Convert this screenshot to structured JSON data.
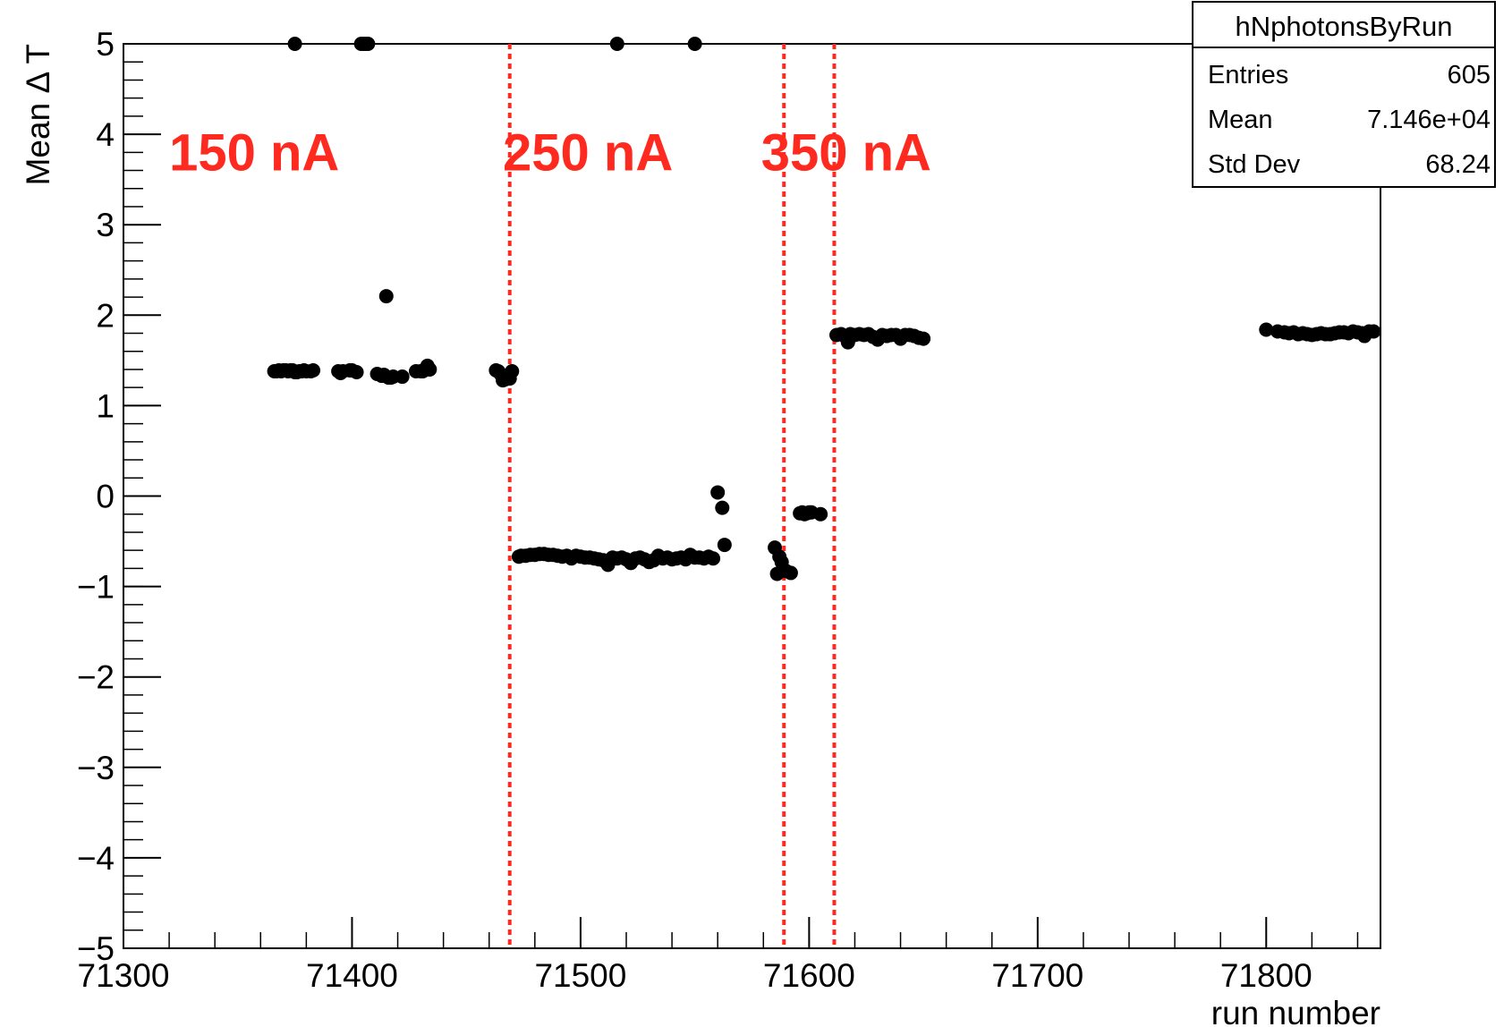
{
  "chart_data": {
    "type": "scatter",
    "xlabel": "run number",
    "ylabel": "Mean Δ T",
    "xlim": [
      71300,
      71850
    ],
    "ylim": [
      -5,
      5
    ],
    "x_ticks": [
      "71300",
      "71400",
      "71500",
      "71600",
      "71700",
      "71800"
    ],
    "y_ticks": [
      "−5",
      "−4",
      "−3",
      "−2",
      "−1",
      "0",
      "1",
      "2",
      "3",
      "4",
      "5"
    ],
    "marker_color": "#000000",
    "line_color": "#ff2a1f",
    "stats_box": {
      "title": "hNphotonsByRun",
      "rows": [
        {
          "label": "Entries",
          "value": "605"
        },
        {
          "label": "Mean",
          "value": "7.146e+04"
        },
        {
          "label": "Std Dev",
          "value": "68.24"
        }
      ]
    },
    "region_labels": [
      {
        "text": "150 nA",
        "x": 71320,
        "y": 3.8
      },
      {
        "text": "250 nA",
        "x": 71466,
        "y": 3.8
      },
      {
        "text": "350 nA",
        "x": 71579,
        "y": 3.8
      }
    ],
    "boundaries": [
      71469,
      71589,
      71611
    ],
    "points": [
      [
        71375,
        5
      ],
      [
        71404,
        5
      ],
      [
        71405,
        5
      ],
      [
        71406,
        5
      ],
      [
        71407,
        5
      ],
      [
        71516,
        5
      ],
      [
        71550,
        5
      ],
      [
        71415,
        2.21
      ],
      [
        71366,
        1.38
      ],
      [
        71367,
        1.38
      ],
      [
        71368,
        1.39
      ],
      [
        71369,
        1.38
      ],
      [
        71370,
        1.39
      ],
      [
        71371,
        1.39
      ],
      [
        71372,
        1.38
      ],
      [
        71373,
        1.39
      ],
      [
        71374,
        1.39
      ],
      [
        71375,
        1.37
      ],
      [
        71376,
        1.37
      ],
      [
        71377,
        1.38
      ],
      [
        71378,
        1.38
      ],
      [
        71379,
        1.39
      ],
      [
        71380,
        1.38
      ],
      [
        71382,
        1.38
      ],
      [
        71383,
        1.39
      ],
      [
        71394,
        1.38
      ],
      [
        71395,
        1.36
      ],
      [
        71396,
        1.38
      ],
      [
        71399,
        1.39
      ],
      [
        71400,
        1.39
      ],
      [
        71402,
        1.37
      ],
      [
        71411,
        1.35
      ],
      [
        71413,
        1.33
      ],
      [
        71414,
        1.34
      ],
      [
        71416,
        1.31
      ],
      [
        71417,
        1.31
      ],
      [
        71418,
        1.32
      ],
      [
        71422,
        1.32
      ],
      [
        71428,
        1.38
      ],
      [
        71430,
        1.38
      ],
      [
        71431,
        1.38
      ],
      [
        71433,
        1.44
      ],
      [
        71434,
        1.4
      ],
      [
        71463,
        1.39
      ],
      [
        71464,
        1.38
      ],
      [
        71465,
        1.35
      ],
      [
        71466,
        1.28
      ],
      [
        71467,
        1.29
      ],
      [
        71468,
        1.33
      ],
      [
        71469,
        1.3
      ],
      [
        71470,
        1.38
      ],
      [
        71473,
        -0.67
      ],
      [
        71474,
        -0.66
      ],
      [
        71476,
        -0.66
      ],
      [
        71478,
        -0.65
      ],
      [
        71480,
        -0.65
      ],
      [
        71482,
        -0.64
      ],
      [
        71484,
        -0.64
      ],
      [
        71486,
        -0.65
      ],
      [
        71488,
        -0.65
      ],
      [
        71490,
        -0.66
      ],
      [
        71492,
        -0.67
      ],
      [
        71494,
        -0.66
      ],
      [
        71496,
        -0.69
      ],
      [
        71498,
        -0.66
      ],
      [
        71500,
        -0.67
      ],
      [
        71502,
        -0.68
      ],
      [
        71504,
        -0.68
      ],
      [
        71506,
        -0.69
      ],
      [
        71508,
        -0.7
      ],
      [
        71510,
        -0.71
      ],
      [
        71512,
        -0.76
      ],
      [
        71514,
        -0.68
      ],
      [
        71516,
        -0.69
      ],
      [
        71518,
        -0.68
      ],
      [
        71520,
        -0.7
      ],
      [
        71522,
        -0.74
      ],
      [
        71524,
        -0.69
      ],
      [
        71526,
        -0.68
      ],
      [
        71528,
        -0.7
      ],
      [
        71530,
        -0.73
      ],
      [
        71532,
        -0.71
      ],
      [
        71534,
        -0.66
      ],
      [
        71536,
        -0.69
      ],
      [
        71538,
        -0.68
      ],
      [
        71540,
        -0.7
      ],
      [
        71542,
        -0.69
      ],
      [
        71544,
        -0.68
      ],
      [
        71546,
        -0.7
      ],
      [
        71548,
        -0.65
      ],
      [
        71550,
        -0.68
      ],
      [
        71552,
        -0.68
      ],
      [
        71554,
        -0.69
      ],
      [
        71556,
        -0.67
      ],
      [
        71558,
        -0.69
      ],
      [
        71560,
        0.04
      ],
      [
        71562,
        -0.13
      ],
      [
        71563,
        -0.54
      ],
      [
        71585,
        -0.57
      ],
      [
        71586,
        -0.86
      ],
      [
        71587,
        -0.67
      ],
      [
        71588,
        -0.73
      ],
      [
        71590,
        -0.83
      ],
      [
        71592,
        -0.85
      ],
      [
        71596,
        -0.19
      ],
      [
        71597,
        -0.18
      ],
      [
        71598,
        -0.2
      ],
      [
        71599,
        -0.19
      ],
      [
        71600,
        -0.18
      ],
      [
        71601,
        -0.18
      ],
      [
        71605,
        -0.2
      ],
      [
        71612,
        1.78
      ],
      [
        71614,
        1.79
      ],
      [
        71616,
        1.76
      ],
      [
        71617,
        1.7
      ],
      [
        71618,
        1.79
      ],
      [
        71620,
        1.78
      ],
      [
        71622,
        1.79
      ],
      [
        71624,
        1.78
      ],
      [
        71626,
        1.79
      ],
      [
        71628,
        1.76
      ],
      [
        71630,
        1.73
      ],
      [
        71632,
        1.78
      ],
      [
        71634,
        1.77
      ],
      [
        71636,
        1.78
      ],
      [
        71638,
        1.78
      ],
      [
        71640,
        1.74
      ],
      [
        71642,
        1.78
      ],
      [
        71644,
        1.78
      ],
      [
        71646,
        1.77
      ],
      [
        71648,
        1.75
      ],
      [
        71650,
        1.74
      ],
      [
        71800,
        1.84
      ],
      [
        71805,
        1.82
      ],
      [
        71808,
        1.81
      ],
      [
        71810,
        1.8
      ],
      [
        71812,
        1.81
      ],
      [
        71814,
        1.79
      ],
      [
        71816,
        1.8
      ],
      [
        71818,
        1.79
      ],
      [
        71820,
        1.78
      ],
      [
        71822,
        1.79
      ],
      [
        71824,
        1.8
      ],
      [
        71826,
        1.79
      ],
      [
        71828,
        1.79
      ],
      [
        71830,
        1.8
      ],
      [
        71832,
        1.81
      ],
      [
        71834,
        1.81
      ],
      [
        71836,
        1.8
      ],
      [
        71838,
        1.82
      ],
      [
        71840,
        1.81
      ],
      [
        71842,
        1.8
      ],
      [
        71843,
        1.77
      ],
      [
        71845,
        1.82
      ],
      [
        71847,
        1.82
      ]
    ]
  }
}
